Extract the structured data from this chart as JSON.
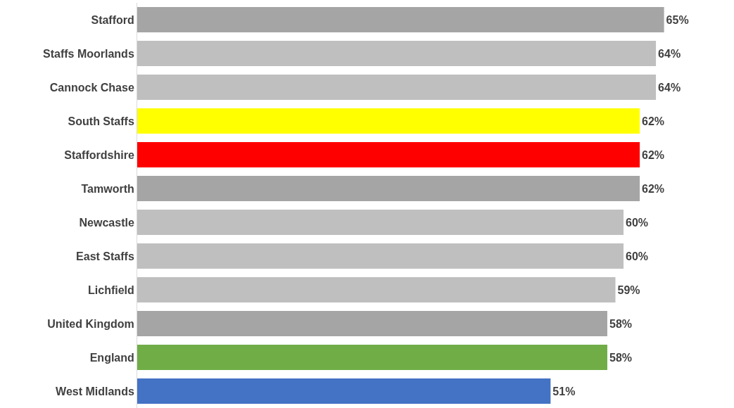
{
  "chart_data": {
    "type": "bar",
    "orientation": "horizontal",
    "categories": [
      "Stafford",
      "Staffs Moorlands",
      "Cannock Chase",
      "South Staffs",
      "Staffordshire",
      "Tamworth",
      "Newcastle",
      "East Staffs",
      "Lichfield",
      "United Kingdom",
      "England",
      "West Midlands"
    ],
    "values": [
      65,
      64,
      64,
      62,
      62,
      62,
      60,
      60,
      59,
      58,
      58,
      51
    ],
    "value_labels": [
      "65%",
      "64%",
      "64%",
      "62%",
      "62%",
      "62%",
      "60%",
      "60%",
      "59%",
      "58%",
      "58%",
      "51%"
    ],
    "colors": [
      "#a5a5a5",
      "#bfbfbf",
      "#bfbfbf",
      "#ffff00",
      "#ff0000",
      "#a5a5a5",
      "#bfbfbf",
      "#bfbfbf",
      "#bfbfbf",
      "#a5a5a5",
      "#70ad47",
      "#4472c4"
    ],
    "data_labels": true
  }
}
